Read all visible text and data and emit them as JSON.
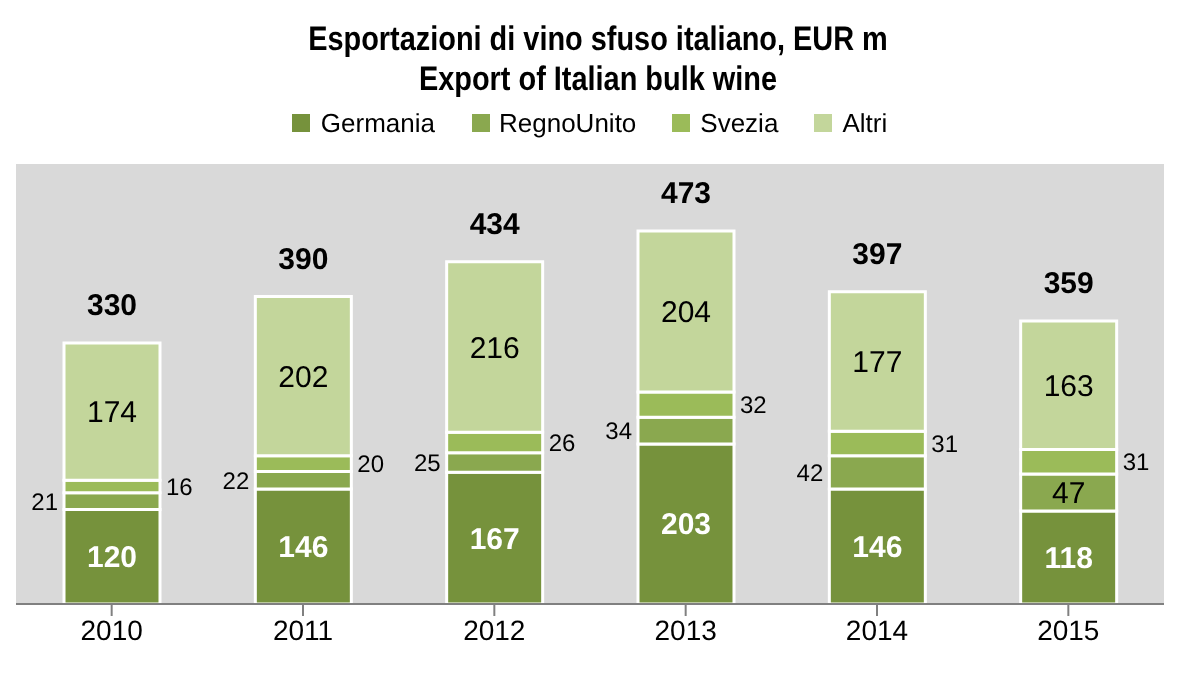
{
  "chart_data": {
    "type": "bar",
    "title": "Esportazioni di vino sfuso italiano, EUR m",
    "subtitle": "Export of Italian bulk wine",
    "categories": [
      "2010",
      "2011",
      "2012",
      "2013",
      "2014",
      "2015"
    ],
    "stacked": true,
    "data_labels": true,
    "legend": "top",
    "grid": false,
    "series": [
      {
        "name": "Germania",
        "color": "#76923c",
        "values": [
          120,
          146,
          167,
          203,
          146,
          118
        ]
      },
      {
        "name": "RegnoUnito",
        "color": "#8aa84f",
        "values": [
          21,
          22,
          25,
          34,
          42,
          47
        ]
      },
      {
        "name": "Svezia",
        "color": "#9bbb59",
        "values": [
          16,
          20,
          26,
          32,
          31,
          31
        ]
      },
      {
        "name": "Altri",
        "color": "#c3d69b",
        "values": [
          174,
          202,
          216,
          204,
          177,
          163
        ]
      }
    ],
    "totals": [
      "330",
      "390",
      "434",
      "473",
      "397",
      "359"
    ]
  }
}
